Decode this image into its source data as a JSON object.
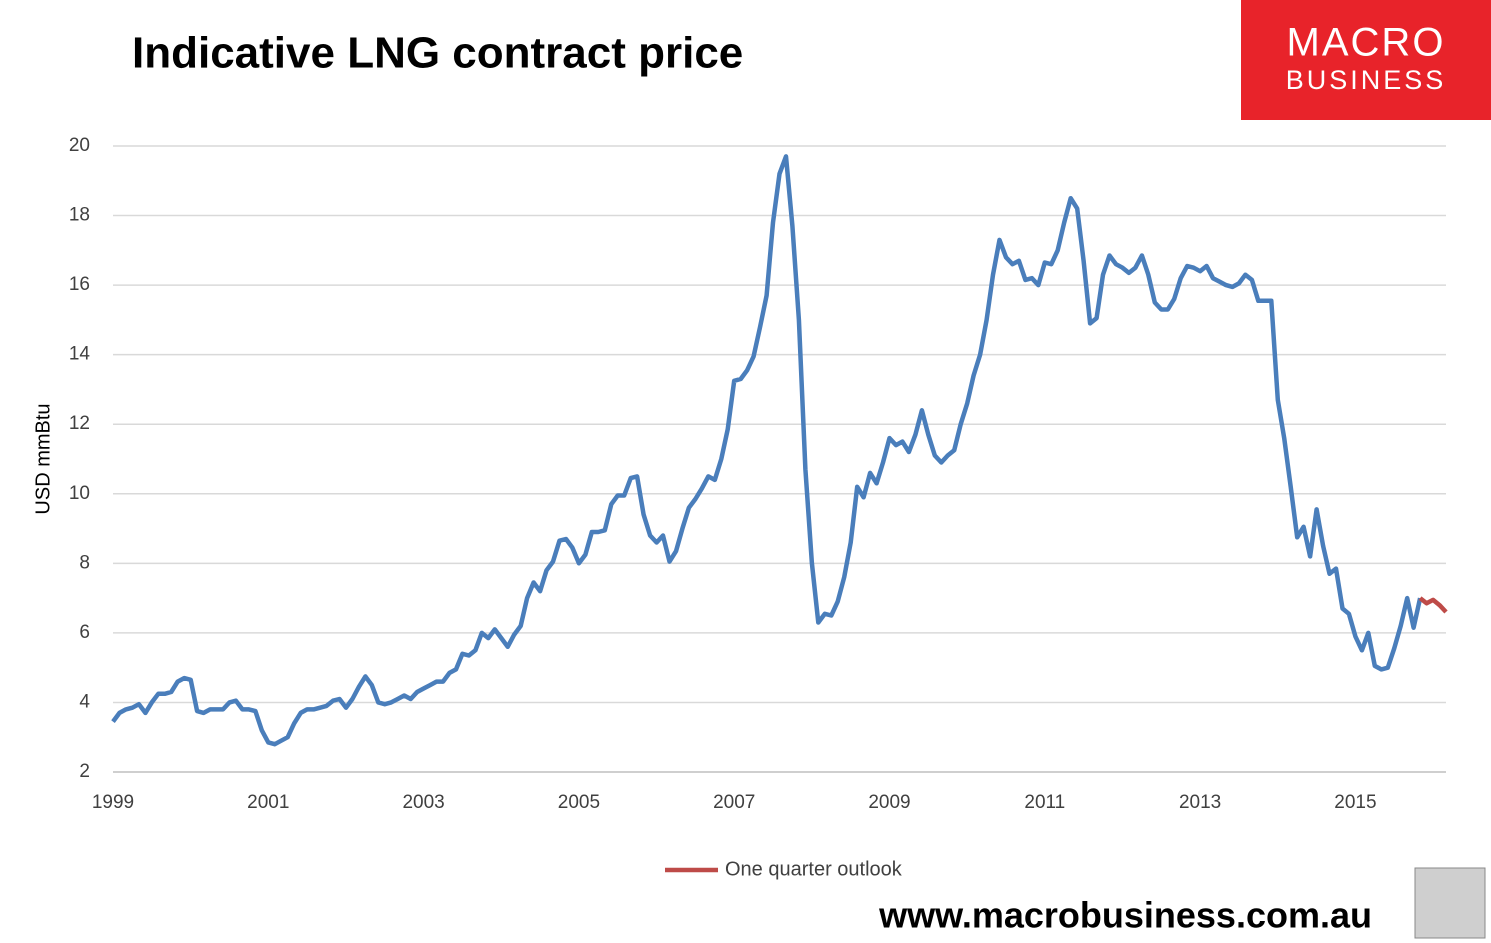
{
  "chart_data": {
    "type": "line",
    "title": "Indicative LNG contract price",
    "y_label": "USD mmBtu",
    "logo_lines": [
      "MACRO",
      "BUSINESS"
    ],
    "footer": "www.macrobusiness.com.au",
    "ylim": [
      2,
      20
    ],
    "yticks": [
      2,
      4,
      6,
      8,
      10,
      12,
      14,
      16,
      18,
      20
    ],
    "grid": true,
    "legend": "bottom",
    "categories": [
      "1999",
      null,
      null,
      null,
      null,
      null,
      null,
      null,
      null,
      null,
      null,
      null,
      null,
      null,
      null,
      null,
      null,
      null,
      null,
      null,
      null,
      null,
      null,
      null,
      "2001",
      null,
      null,
      null,
      null,
      null,
      null,
      null,
      null,
      null,
      null,
      null,
      null,
      null,
      null,
      null,
      null,
      null,
      null,
      null,
      null,
      null,
      null,
      null,
      "2003",
      null,
      null,
      null,
      null,
      null,
      null,
      null,
      null,
      null,
      null,
      null,
      null,
      null,
      null,
      null,
      null,
      null,
      null,
      null,
      null,
      null,
      null,
      null,
      "2005",
      null,
      null,
      null,
      null,
      null,
      null,
      null,
      null,
      null,
      null,
      null,
      null,
      null,
      null,
      null,
      null,
      null,
      null,
      null,
      null,
      null,
      null,
      null,
      "2007",
      null,
      null,
      null,
      null,
      null,
      null,
      null,
      null,
      null,
      null,
      null,
      null,
      null,
      null,
      null,
      null,
      null,
      null,
      null,
      null,
      null,
      null,
      null,
      "2009",
      null,
      null,
      null,
      null,
      null,
      null,
      null,
      null,
      null,
      null,
      null,
      null,
      null,
      null,
      null,
      null,
      null,
      null,
      null,
      null,
      null,
      null,
      null,
      "2011",
      null,
      null,
      null,
      null,
      null,
      null,
      null,
      null,
      null,
      null,
      null,
      null,
      null,
      null,
      null,
      null,
      null,
      null,
      null,
      null,
      null,
      null,
      null,
      "2013",
      null,
      null,
      null,
      null,
      null,
      null,
      null,
      null,
      null,
      null,
      null,
      null,
      null,
      null,
      null,
      null,
      null,
      null,
      null,
      null,
      null,
      null,
      null,
      "2015",
      null,
      null,
      null,
      null,
      null,
      null,
      null,
      null,
      null,
      null,
      null,
      null,
      null,
      null
    ],
    "series": [
      {
        "color": "#4a7ebb",
        "values": [
          3.45,
          3.7,
          3.8,
          3.85,
          3.95,
          3.7,
          4.0,
          4.25,
          4.25,
          4.3,
          4.6,
          4.7,
          4.65,
          3.75,
          3.7,
          3.8,
          3.8,
          3.8,
          4.0,
          4.05,
          3.8,
          3.8,
          3.75,
          3.2,
          2.85,
          2.8,
          2.9,
          3.0,
          3.4,
          3.7,
          3.8,
          3.8,
          3.85,
          3.9,
          4.05,
          4.1,
          3.85,
          4.1,
          4.45,
          4.75,
          4.5,
          4.0,
          3.95,
          4.0,
          4.1,
          4.2,
          4.1,
          4.3,
          4.4,
          4.5,
          4.6,
          4.6,
          4.85,
          4.95,
          5.4,
          5.35,
          5.5,
          6.0,
          5.85,
          6.1,
          5.85,
          5.6,
          5.95,
          6.2,
          7.0,
          7.45,
          7.2,
          7.8,
          8.05,
          8.65,
          8.7,
          8.45,
          8.0,
          8.25,
          8.9,
          8.9,
          8.95,
          9.7,
          9.95,
          9.95,
          10.45,
          10.5,
          9.4,
          8.8,
          8.6,
          8.8,
          8.05,
          8.35,
          9.0,
          9.6,
          9.85,
          10.15,
          10.5,
          10.4,
          11.0,
          11.85,
          13.25,
          13.3,
          13.55,
          13.95,
          14.8,
          15.7,
          17.8,
          19.2,
          19.7,
          17.7,
          15.0,
          10.7,
          8.0,
          6.3,
          6.55,
          6.5,
          6.9,
          7.6,
          8.6,
          10.2,
          9.9,
          10.6,
          10.3,
          10.9,
          11.6,
          11.4,
          11.5,
          11.2,
          11.7,
          12.4,
          11.7,
          11.1,
          10.9,
          11.1,
          11.25,
          12.0,
          12.6,
          13.4,
          14.0,
          15.0,
          16.3,
          17.3,
          16.8,
          16.6,
          16.7,
          16.15,
          16.2,
          16.0,
          16.65,
          16.6,
          17.0,
          17.8,
          18.5,
          18.2,
          16.7,
          14.9,
          15.05,
          16.3,
          16.85,
          16.6,
          16.5,
          16.35,
          16.5,
          16.85,
          16.3,
          15.5,
          15.3,
          15.3,
          15.6,
          16.2,
          16.55,
          16.5,
          16.4,
          16.55,
          16.2,
          16.1,
          16.0,
          15.95,
          16.05,
          16.3,
          16.15,
          15.55,
          15.55,
          15.55,
          12.7,
          11.6,
          10.2,
          8.75,
          9.05,
          8.2,
          9.55,
          8.5,
          7.7,
          7.85,
          6.7,
          6.55,
          5.9,
          5.5,
          6.0,
          5.05,
          4.95,
          5.0,
          5.55,
          6.2,
          7.0,
          6.15,
          7.0,
          null,
          null,
          null,
          null
        ]
      },
      {
        "name": "One quarter outlook",
        "color": "#be4b48",
        "values": [
          null,
          null,
          null,
          null,
          null,
          null,
          null,
          null,
          null,
          null,
          null,
          null,
          null,
          null,
          null,
          null,
          null,
          null,
          null,
          null,
          null,
          null,
          null,
          null,
          null,
          null,
          null,
          null,
          null,
          null,
          null,
          null,
          null,
          null,
          null,
          null,
          null,
          null,
          null,
          null,
          null,
          null,
          null,
          null,
          null,
          null,
          null,
          null,
          null,
          null,
          null,
          null,
          null,
          null,
          null,
          null,
          null,
          null,
          null,
          null,
          null,
          null,
          null,
          null,
          null,
          null,
          null,
          null,
          null,
          null,
          null,
          null,
          null,
          null,
          null,
          null,
          null,
          null,
          null,
          null,
          null,
          null,
          null,
          null,
          null,
          null,
          null,
          null,
          null,
          null,
          null,
          null,
          null,
          null,
          null,
          null,
          null,
          null,
          null,
          null,
          null,
          null,
          null,
          null,
          null,
          null,
          null,
          null,
          null,
          null,
          null,
          null,
          null,
          null,
          null,
          null,
          null,
          null,
          null,
          null,
          null,
          null,
          null,
          null,
          null,
          null,
          null,
          null,
          null,
          null,
          null,
          null,
          null,
          null,
          null,
          null,
          null,
          null,
          null,
          null,
          null,
          null,
          null,
          null,
          null,
          null,
          null,
          null,
          null,
          null,
          null,
          null,
          null,
          null,
          null,
          null,
          null,
          null,
          null,
          null,
          null,
          null,
          null,
          null,
          null,
          null,
          null,
          null,
          null,
          null,
          null,
          null,
          null,
          null,
          null,
          null,
          null,
          null,
          null,
          null,
          null,
          null,
          null,
          null,
          null,
          null,
          null,
          null,
          null,
          null,
          null,
          null,
          null,
          null,
          null,
          null,
          null,
          null,
          null,
          null,
          null,
          null,
          7.0,
          6.85,
          6.95,
          6.8,
          6.6
        ]
      }
    ]
  }
}
